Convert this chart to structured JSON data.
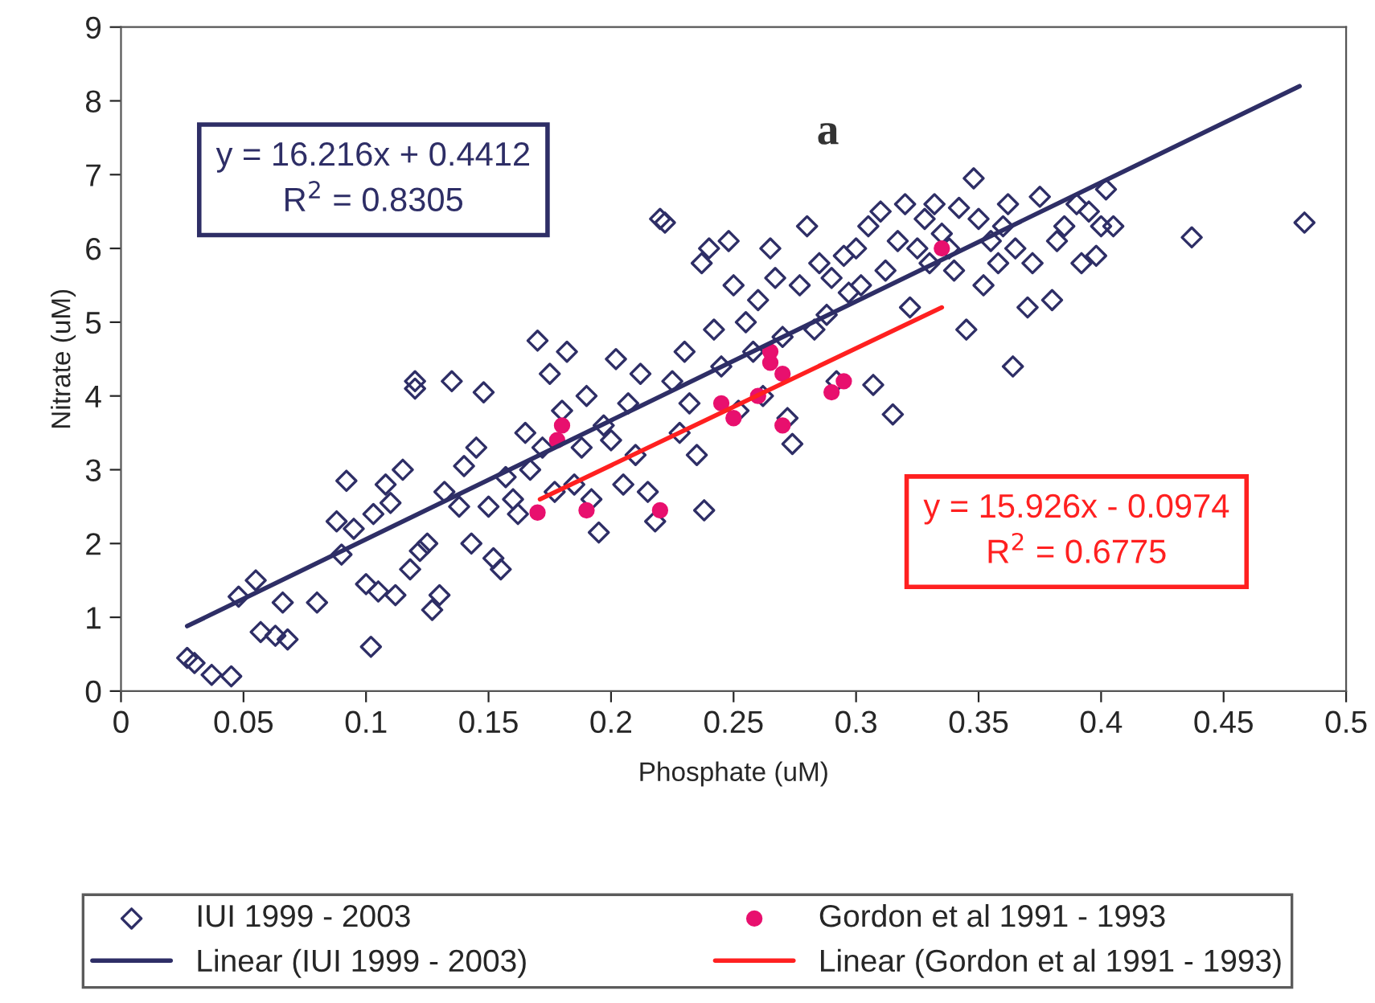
{
  "chart_data": {
    "type": "scatter",
    "xlabel": "Phosphate (uM)",
    "ylabel": "Nitrate (uM)",
    "xlim": [
      0,
      0.5
    ],
    "xticks": [
      0,
      0.05,
      0.1,
      0.15,
      0.2,
      0.25,
      0.3,
      0.35,
      0.4,
      0.45,
      0.5
    ],
    "ylim": [
      0,
      9
    ],
    "yticks": [
      0,
      1,
      2,
      3,
      4,
      5,
      6,
      7,
      8,
      9
    ],
    "grid": false,
    "legend": "bottom",
    "annotations": [
      "a",
      "y = 16.216x + 0.4412\nR$^{2}$ = 0.8305",
      "y = 15.926x - 0.0974\nR$^{2}$ = 0.6775"
    ],
    "series": [
      {
        "name": "IUI 1999 - 2003",
        "marker": "diamond",
        "color": "#2e2e66",
        "x": [
          0.027,
          0.03,
          0.037,
          0.045,
          0.048,
          0.055,
          0.057,
          0.063,
          0.066,
          0.068,
          0.08,
          0.088,
          0.09,
          0.092,
          0.095,
          0.1,
          0.102,
          0.103,
          0.105,
          0.108,
          0.11,
          0.112,
          0.115,
          0.118,
          0.12,
          0.12,
          0.122,
          0.125,
          0.127,
          0.13,
          0.132,
          0.135,
          0.138,
          0.14,
          0.143,
          0.145,
          0.148,
          0.15,
          0.152,
          0.155,
          0.157,
          0.16,
          0.162,
          0.165,
          0.167,
          0.17,
          0.172,
          0.175,
          0.177,
          0.18,
          0.182,
          0.185,
          0.188,
          0.19,
          0.192,
          0.195,
          0.197,
          0.2,
          0.202,
          0.205,
          0.207,
          0.21,
          0.212,
          0.215,
          0.218,
          0.22,
          0.222,
          0.225,
          0.228,
          0.23,
          0.232,
          0.235,
          0.237,
          0.238,
          0.24,
          0.242,
          0.245,
          0.248,
          0.25,
          0.252,
          0.255,
          0.258,
          0.26,
          0.262,
          0.265,
          0.267,
          0.27,
          0.272,
          0.274,
          0.277,
          0.28,
          0.283,
          0.285,
          0.288,
          0.29,
          0.292,
          0.295,
          0.297,
          0.3,
          0.302,
          0.305,
          0.307,
          0.31,
          0.312,
          0.315,
          0.317,
          0.32,
          0.322,
          0.325,
          0.328,
          0.33,
          0.332,
          0.335,
          0.338,
          0.34,
          0.342,
          0.345,
          0.348,
          0.35,
          0.352,
          0.355,
          0.358,
          0.36,
          0.362,
          0.364,
          0.365,
          0.37,
          0.372,
          0.375,
          0.38,
          0.382,
          0.385,
          0.39,
          0.392,
          0.395,
          0.398,
          0.4,
          0.402,
          0.405,
          0.437,
          0.483
        ],
        "values": [
          0.45,
          0.38,
          0.22,
          0.2,
          1.28,
          1.5,
          0.8,
          0.75,
          1.2,
          0.7,
          1.2,
          2.3,
          1.85,
          2.85,
          2.2,
          1.45,
          0.6,
          2.4,
          1.35,
          2.8,
          2.55,
          1.3,
          3.0,
          1.65,
          4.2,
          4.1,
          1.9,
          2.0,
          1.1,
          1.3,
          2.7,
          4.2,
          2.5,
          3.05,
          2.0,
          3.3,
          4.05,
          2.5,
          1.8,
          1.65,
          2.9,
          2.6,
          2.4,
          3.5,
          3.0,
          4.75,
          3.3,
          4.3,
          2.7,
          3.8,
          4.6,
          2.8,
          3.3,
          4.0,
          2.6,
          2.15,
          3.6,
          3.4,
          4.5,
          2.8,
          3.9,
          3.2,
          4.3,
          2.7,
          2.3,
          6.4,
          6.35,
          4.2,
          3.5,
          4.6,
          3.9,
          3.2,
          5.8,
          2.45,
          6.0,
          4.9,
          4.4,
          6.1,
          5.5,
          3.8,
          5.0,
          4.6,
          5.3,
          4.0,
          6.0,
          5.6,
          4.8,
          3.7,
          3.35,
          5.5,
          6.3,
          4.9,
          5.8,
          5.1,
          5.6,
          4.2,
          5.9,
          5.4,
          6.0,
          5.5,
          6.3,
          4.15,
          6.5,
          5.7,
          3.75,
          6.1,
          6.6,
          5.2,
          6.0,
          6.4,
          5.8,
          6.6,
          6.2,
          6.0,
          5.7,
          6.55,
          4.9,
          6.95,
          6.4,
          5.5,
          6.1,
          5.8,
          6.3,
          6.6,
          4.4,
          6.0,
          5.2,
          5.8,
          6.7,
          5.3,
          6.1,
          6.3,
          6.6,
          5.8,
          6.5,
          5.9,
          6.3,
          6.8,
          6.3,
          6.15,
          6.35
        ]
      },
      {
        "name": "Gordon et al 1991 - 1993",
        "marker": "circle",
        "color": "#e8106e",
        "x": [
          0.17,
          0.178,
          0.18,
          0.19,
          0.22,
          0.245,
          0.25,
          0.26,
          0.265,
          0.265,
          0.27,
          0.27,
          0.29,
          0.295,
          0.335
        ],
        "values": [
          2.42,
          3.4,
          3.6,
          2.45,
          2.45,
          3.9,
          3.7,
          4.0,
          4.45,
          4.6,
          4.3,
          3.6,
          4.05,
          4.2,
          6.0
        ]
      },
      {
        "name": "Linear (IUI 1999 - 2003)",
        "type": "line",
        "marker": "none",
        "line_style": "solid",
        "color": "#2e2e66",
        "x": [
          0.027,
          0.481
        ],
        "values": [
          0.88,
          8.2
        ]
      },
      {
        "name": "Linear (Gordon et al 1991 - 1993)",
        "type": "line",
        "marker": "none",
        "line_style": "solid",
        "color": "#ff2020",
        "x": [
          0.171,
          0.335
        ],
        "values": [
          2.6,
          5.2
        ]
      }
    ]
  }
}
